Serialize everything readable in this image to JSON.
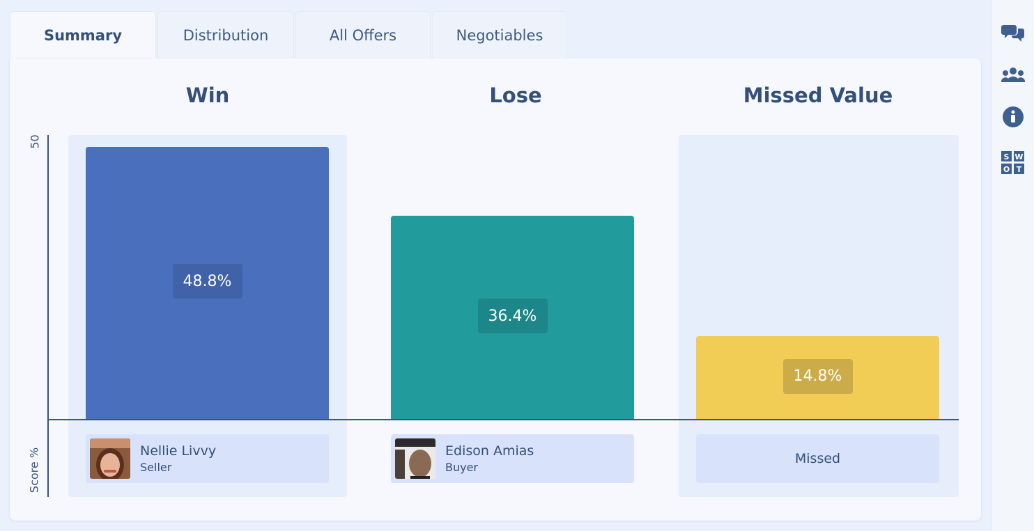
{
  "tabs": [
    {
      "label": "Summary",
      "active": true
    },
    {
      "label": "Distribution",
      "active": false
    },
    {
      "label": "All Offers",
      "active": false
    },
    {
      "label": "Negotiables",
      "active": false
    }
  ],
  "columns": {
    "win_title": "Win",
    "lose_title": "Lose",
    "missed_title": "Missed Value"
  },
  "chart_data": {
    "type": "bar",
    "categories": [
      "Win",
      "Lose",
      "Missed Value"
    ],
    "values": [
      48.8,
      36.4,
      14.8
    ],
    "value_labels": [
      "48.8%",
      "36.4%",
      "14.8%"
    ],
    "ylabel": "Score %",
    "y_tick_labels": [
      "50"
    ],
    "ylim": [
      0,
      50
    ],
    "colors": [
      "#4a70bd",
      "#229b9d",
      "#f2cd56"
    ],
    "label_colors": [
      "#3f62a8",
      "#1d8688",
      "#ccac49"
    ]
  },
  "legend": {
    "win": {
      "name": "Nellie Livvy",
      "role": "Seller"
    },
    "lose": {
      "name": "Edison Amias",
      "role": "Buyer"
    },
    "missed": {
      "label": "Missed"
    }
  },
  "rail": {
    "icons": [
      "chat-icon",
      "users-icon",
      "info-icon",
      "swot-icon"
    ],
    "swot_letters": [
      "S",
      "W",
      "O",
      "T"
    ]
  }
}
